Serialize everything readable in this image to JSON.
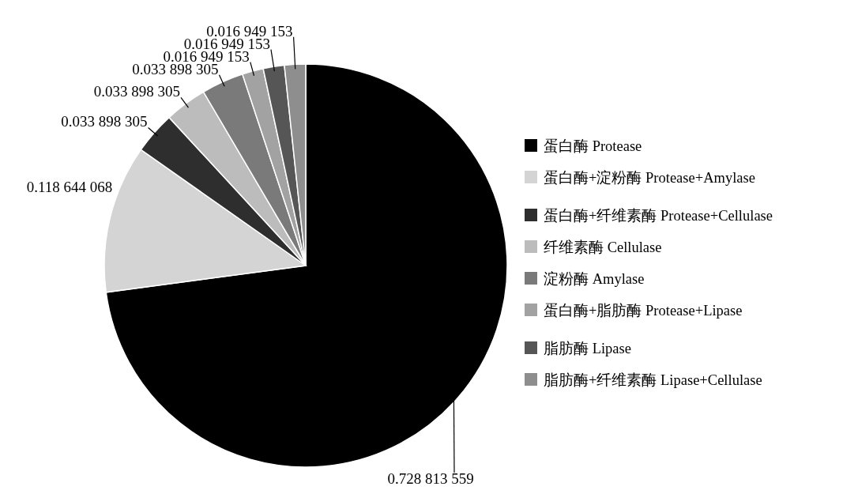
{
  "chart_data": {
    "type": "pie",
    "categories": [
      "蛋白酶 Protease",
      "蛋白酶+淀粉酶 Protease+Amylase",
      "蛋白酶+纤维素酶 Protease+Cellulase",
      "纤维素酶 Cellulase",
      "淀粉酶 Amylase",
      "蛋白酶+脂肪酶 Protease+Lipase",
      "脂肪酶 Lipase",
      "脂肪酶+纤维素酶 Lipase+Cellulase"
    ],
    "values": [
      0.728813559,
      0.118644068,
      0.033898305,
      0.033898305,
      0.033898305,
      0.016949153,
      0.016949153,
      0.016949153
    ],
    "colors": [
      "#000000",
      "#d4d4d4",
      "#2e2e2e",
      "#bcbcbc",
      "#7a7a7a",
      "#a2a2a2",
      "#565656",
      "#8e8e8e"
    ],
    "value_labels": [
      "0.728 813 559",
      "0.118 644 068",
      "0.033 898 305",
      "0.033 898 305",
      "0.033 898 305",
      "0.016 949 153",
      "0.016 949 153",
      "0.016 949 153"
    ],
    "legend": "right"
  }
}
